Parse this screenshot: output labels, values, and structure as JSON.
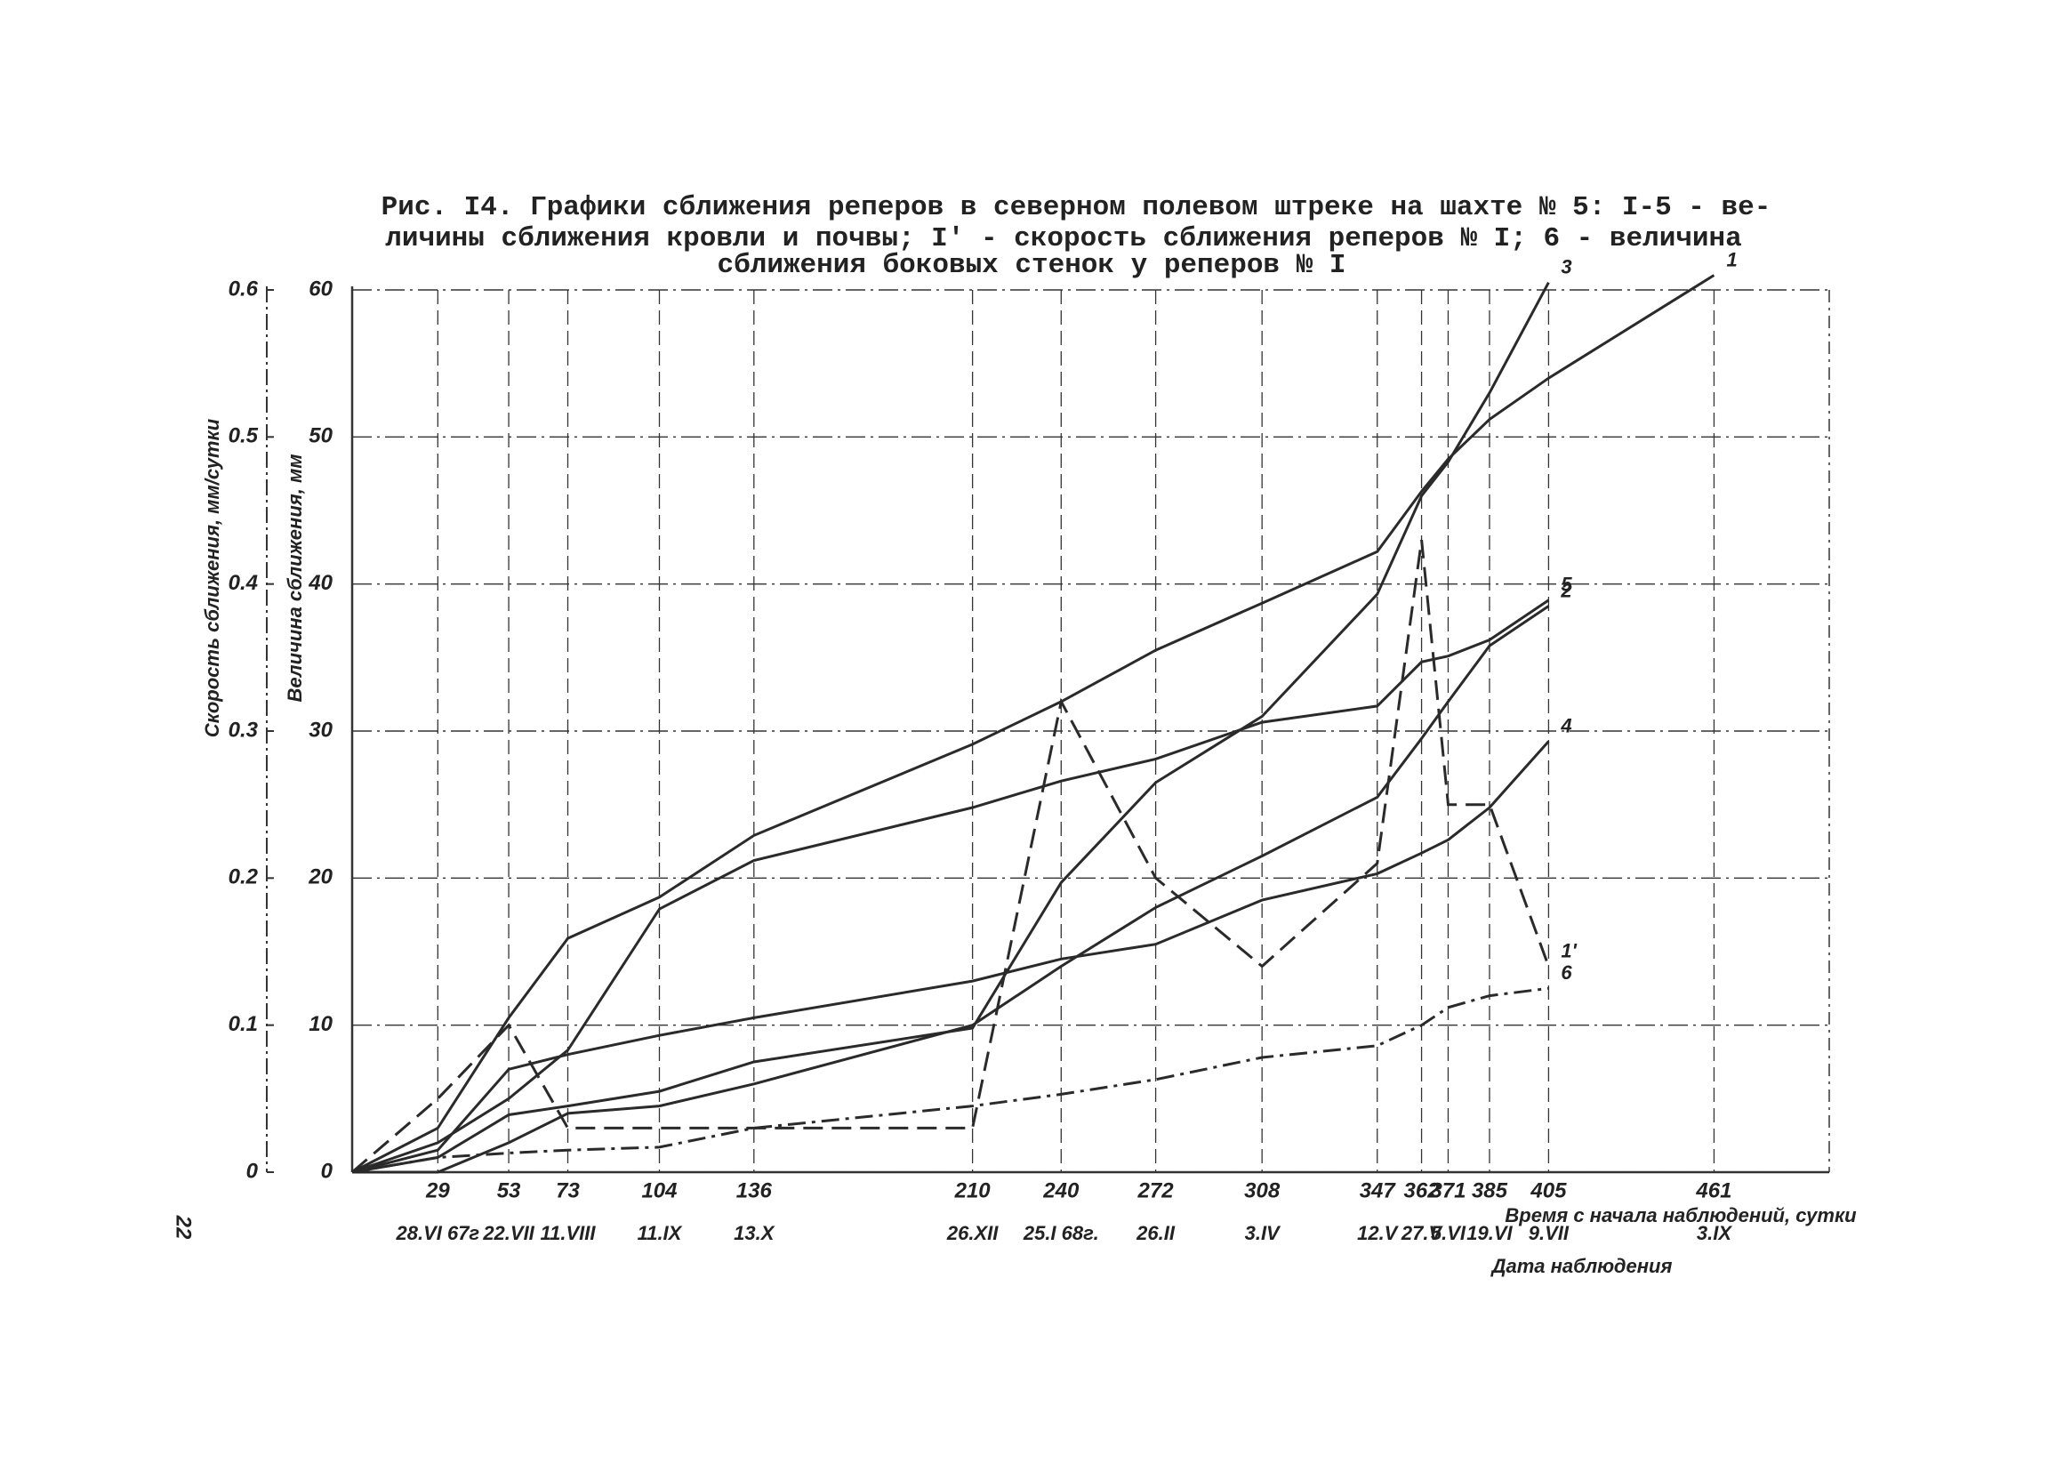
{
  "page_number": "22",
  "chart_data": {
    "type": "line",
    "title_lines": [
      "Рис. I4. Графики сближения реперов в северном полевом штреке на шахте № 5: I-5 - ве-",
      "личины сближения кровли и почвы; I' - скорость сближения реперов № I; 6 - величина",
      "сближения боковых стенок у реперов № I"
    ],
    "ylabel": "Величина сближения, мм",
    "y2label": "Скорость сближения, мм/сутки",
    "xlabel": "Время с начала наблюдений, сутки",
    "xlabel2": "Дата наблюдения",
    "x": [
      0,
      29,
      53,
      73,
      104,
      136,
      210,
      240,
      272,
      308,
      347,
      362,
      371,
      385,
      405,
      461
    ],
    "xlim": [
      0,
      500
    ],
    "xticks": [
      29,
      53,
      73,
      104,
      136,
      210,
      240,
      272,
      308,
      347,
      362,
      371,
      385,
      405,
      461
    ],
    "xtick_dates": [
      "28.VI 67г",
      "22.VII",
      "11.VIII",
      "11.IX",
      "13.X",
      "26.XII",
      "25.I 68г.",
      "26.II",
      "3.IV",
      "12.V",
      "27.V",
      "5.VI",
      "19.VI",
      "9.VII",
      "3.IX"
    ],
    "ylim": [
      0,
      60
    ],
    "yticks": [
      0,
      10,
      20,
      30,
      40,
      50,
      60
    ],
    "y2lim": [
      0,
      0.6
    ],
    "y2ticks": [
      0,
      0.1,
      0.2,
      0.3,
      0.4,
      0.5,
      0.6
    ],
    "grid": true,
    "series": [
      {
        "name": "1",
        "color": "#2a2a2a",
        "style": "solid",
        "values": [
          0,
          3,
          10.5,
          15.9,
          18.7,
          22.9,
          29.1,
          32,
          35.5,
          38.7,
          42.2,
          46.3,
          48.5,
          51.2,
          54,
          61
        ]
      },
      {
        "name": "3",
        "color": "#2a2a2a",
        "style": "solid",
        "values": [
          0,
          1,
          3.9,
          4.5,
          5.5,
          7.5,
          9.8,
          19.7,
          26.5,
          31,
          39.3,
          46,
          48.3,
          53,
          60.5,
          null
        ]
      },
      {
        "name": "5",
        "color": "#2a2a2a",
        "style": "solid",
        "values": [
          0,
          2,
          5,
          8.3,
          17.9,
          21.2,
          24.8,
          26.6,
          28.1,
          30.6,
          31.7,
          34.7,
          35.1,
          36.2,
          38.9,
          null
        ]
      },
      {
        "name": "2",
        "color": "#2a2a2a",
        "style": "solid",
        "values": [
          0,
          0,
          2,
          4,
          4.5,
          6,
          10,
          14,
          18,
          21.5,
          25.5,
          29.5,
          32,
          35.8,
          38.5,
          null
        ]
      },
      {
        "name": "4",
        "color": "#2a2a2a",
        "style": "solid",
        "values": [
          0,
          1.5,
          7,
          8,
          9.3,
          10.5,
          13,
          14.5,
          15.5,
          18.5,
          20.3,
          21.7,
          22.6,
          24.8,
          29.3,
          null
        ]
      },
      {
        "name": "1'",
        "color": "#2a2a2a",
        "style": "dashed",
        "axis": "y2",
        "values": [
          0,
          0.05,
          0.1,
          0.03,
          0.03,
          0.03,
          0.03,
          0.32,
          0.2,
          0.14,
          0.21,
          0.43,
          0.25,
          0.25,
          0.14,
          null
        ]
      },
      {
        "name": "6",
        "color": "#2a2a2a",
        "style": "dashdot",
        "values": [
          0,
          1,
          1.3,
          1.5,
          1.7,
          3,
          4.5,
          5.3,
          6.3,
          7.8,
          8.6,
          10,
          11.2,
          12,
          12.5,
          null
        ]
      }
    ]
  }
}
